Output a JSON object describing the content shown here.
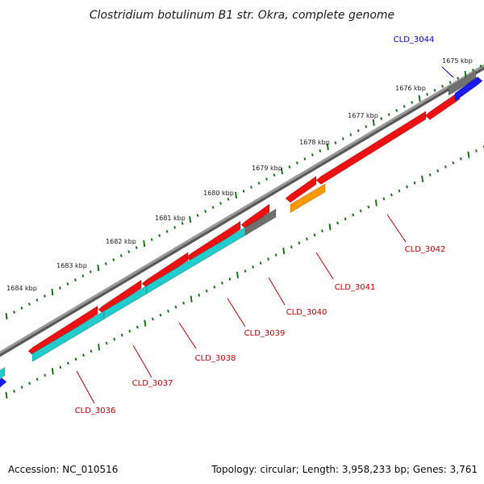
{
  "title": "Clostridium botulinum B1 str. Okra, complete genome",
  "footer": {
    "accession": "Accession: NC_010516",
    "summary": "Topology: circular; Length: 3,958,233 bp; Genes: 3,761"
  },
  "scale_labels": [
    "1675 kbp",
    "1676 kbp",
    "1677 kbp",
    "1678 kbp",
    "1679 kbp",
    "1680 kbp",
    "1681 kbp",
    "1682 kbp",
    "1683 kbp",
    "1684 kbp"
  ],
  "colors": {
    "backbone": "#8c8c8c",
    "tick": "#1a7a1a",
    "red": "#ee1111",
    "cyan": "#22cccc",
    "gray": "#707070",
    "blue": "#1a1aee",
    "orange": "#ff9900",
    "label_red": "#cc0000",
    "label_blue": "#0000cc"
  },
  "genes": [
    {
      "label": "CLD_3036",
      "color": "red"
    },
    {
      "label": "CLD_3037",
      "color": "red"
    },
    {
      "label": "CLD_3038",
      "color": "red"
    },
    {
      "label": "CLD_3039",
      "color": "red"
    },
    {
      "label": "CLD_3040",
      "color": "red"
    },
    {
      "label": "CLD_3041",
      "color": "orange"
    },
    {
      "label": "CLD_3042",
      "color": "red"
    },
    {
      "label": "CLD_3044",
      "color": "blue"
    }
  ]
}
